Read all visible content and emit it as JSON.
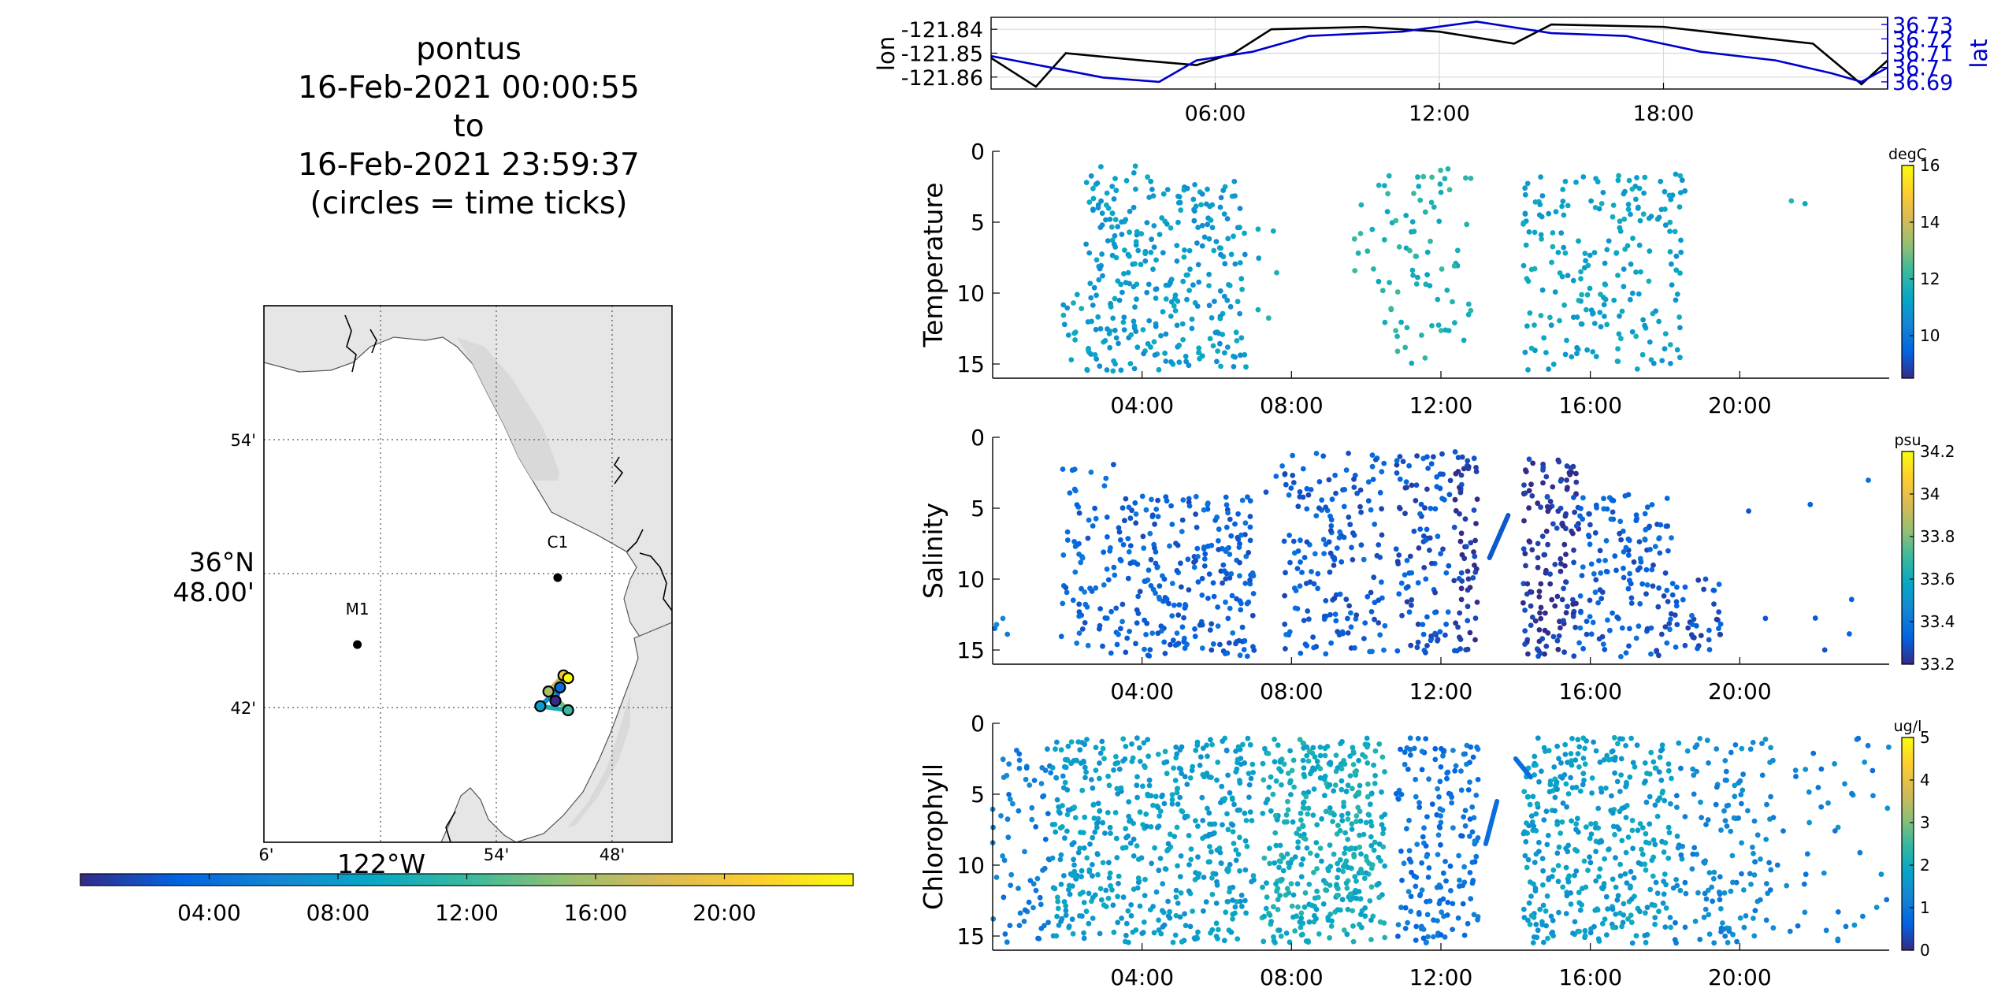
{
  "header": {
    "lines": [
      "pontus",
      "16-Feb-2021 00:00:55",
      "to",
      "16-Feb-2021 23:59:37",
      "(circles = time ticks)"
    ]
  },
  "colors": {
    "land": "#e6e6e6",
    "coast_shade": "#d9d9d9",
    "lat_color": "#0000cc",
    "lon_color": "#000000",
    "parula": [
      "#352a87",
      "#0363e1",
      "#1485d4",
      "#06a7c6",
      "#38b99e",
      "#92bf73",
      "#d9ba56",
      "#fcce2e",
      "#f9fb0e"
    ]
  },
  "chart_data": [
    {
      "id": "map",
      "type": "scatter",
      "lat_ticks": [
        "54'",
        "48.00'",
        "42'"
      ],
      "lat_center_label": "36°N",
      "lon_ticks": [
        "6'",
        "54'",
        "48'"
      ],
      "lon_center_label": "122°W",
      "stations": [
        {
          "name": "M1",
          "lon": -122.02,
          "lat": 36.747
        },
        {
          "name": "C1",
          "lon": -121.847,
          "lat": 36.797
        }
      ],
      "track_points": [
        {
          "lon": -121.849,
          "lat": 36.705
        },
        {
          "lon": -121.845,
          "lat": 36.715
        },
        {
          "lon": -121.862,
          "lat": 36.701
        },
        {
          "lon": -121.838,
          "lat": 36.698
        },
        {
          "lon": -121.855,
          "lat": 36.712
        },
        {
          "lon": -121.842,
          "lat": 36.724
        },
        {
          "lon": -121.838,
          "lat": 36.722
        }
      ],
      "colorbar": {
        "ticks": [
          "04:00",
          "08:00",
          "12:00",
          "16:00",
          "20:00"
        ]
      }
    },
    {
      "id": "position",
      "type": "line",
      "ylabel_left": "lon",
      "ylabel_right": "lat",
      "left_ticks": [
        "-121.84",
        "-121.85",
        "-121.86"
      ],
      "right_ticks": [
        "36.73",
        "36.72",
        "36.71",
        "36.7",
        "36.69"
      ],
      "x_ticks": [
        "06:00",
        "12:00",
        "18:00"
      ],
      "xlim_hours": [
        0,
        24
      ],
      "lon_ylim": [
        -121.865,
        -121.835
      ],
      "lat_ylim": [
        36.685,
        36.735
      ],
      "lon_series": {
        "x": [
          0,
          1.2,
          2,
          4,
          5.5,
          6.5,
          7.5,
          10,
          12,
          14,
          15,
          18,
          22,
          23.3,
          24
        ],
        "y": [
          -121.852,
          -121.864,
          -121.85,
          -121.853,
          -121.855,
          -121.85,
          -121.84,
          -121.839,
          -121.841,
          -121.846,
          -121.838,
          -121.839,
          -121.846,
          -121.863,
          -121.853
        ]
      },
      "lat_series": {
        "x": [
          0,
          3,
          4.5,
          5.5,
          7,
          8.5,
          11,
          13,
          15,
          17,
          19,
          21,
          22.5,
          23.3,
          24
        ],
        "y": [
          36.708,
          36.693,
          36.69,
          36.705,
          36.711,
          36.722,
          36.725,
          36.732,
          36.724,
          36.722,
          36.711,
          36.705,
          36.696,
          36.69,
          36.7
        ]
      }
    },
    {
      "id": "temperature",
      "type": "scatter",
      "ylabel": "Temperature",
      "unit": "degC",
      "y_ticks": [
        "0",
        "5",
        "10",
        "15"
      ],
      "ylim": [
        0,
        16
      ],
      "x_ticks": [
        "04:00",
        "08:00",
        "12:00",
        "16:00",
        "20:00"
      ],
      "xlim_hours": [
        0,
        24
      ],
      "clim": [
        8.5,
        16
      ],
      "cbar_ticks": [
        "16",
        "14",
        "12",
        "10"
      ],
      "clusters": [
        {
          "x": [
            1.7,
            2.4
          ],
          "y": [
            10,
            15.5
          ],
          "n": 12,
          "c": 11.2
        },
        {
          "x": [
            2.5,
            4.3
          ],
          "y": [
            1,
            15.5
          ],
          "n": 150,
          "c": 11.0
        },
        {
          "x": [
            4.3,
            6.8
          ],
          "y": [
            2,
            15.5
          ],
          "n": 170,
          "c": 11.0
        },
        {
          "x": [
            7.1,
            8.1
          ],
          "y": [
            0,
            14
          ],
          "n": 6,
          "c": 11.4
        },
        {
          "x": [
            9.5,
            10.5
          ],
          "y": [
            3,
            10
          ],
          "n": 8,
          "c": 11.8
        },
        {
          "x": [
            10.3,
            12.8
          ],
          "y": [
            1,
            15
          ],
          "n": 80,
          "c": 11.8
        },
        {
          "x": [
            14.2,
            18.6
          ],
          "y": [
            1.5,
            15.5
          ],
          "n": 220,
          "c": 11.2
        },
        {
          "x": [
            19,
            22.2
          ],
          "y": [
            3,
            5
          ],
          "n": 2,
          "c": 11.7
        }
      ]
    },
    {
      "id": "salinity",
      "type": "scatter",
      "ylabel": "Salinity",
      "unit": "psu",
      "y_ticks": [
        "0",
        "5",
        "10",
        "15"
      ],
      "ylim": [
        0,
        16
      ],
      "x_ticks": [
        "04:00",
        "08:00",
        "12:00",
        "16:00",
        "20:00"
      ],
      "xlim_hours": [
        0,
        24
      ],
      "clim": [
        33.2,
        34.2
      ],
      "cbar_ticks": [
        "34.2",
        "34",
        "33.8",
        "33.6",
        "33.4",
        "33.2"
      ],
      "clusters": [
        {
          "x": [
            0,
            0.4
          ],
          "y": [
            12,
            14
          ],
          "n": 4,
          "c": 33.4
        },
        {
          "x": [
            1.8,
            3.3
          ],
          "y": [
            1.5,
            15.5
          ],
          "n": 70,
          "c": 33.35
        },
        {
          "x": [
            3.3,
            7
          ],
          "y": [
            4,
            15.5
          ],
          "n": 250,
          "c": 33.33
        },
        {
          "x": [
            7.2,
            8
          ],
          "y": [
            2,
            4
          ],
          "n": 6,
          "c": 33.35
        },
        {
          "x": [
            7.8,
            10.5
          ],
          "y": [
            1,
            15.5
          ],
          "n": 170,
          "c": 33.32
        },
        {
          "x": [
            10.8,
            12.2
          ],
          "y": [
            1,
            15.5
          ],
          "n": 100,
          "c": 33.3
        },
        {
          "x": [
            12.2,
            13
          ],
          "y": [
            1,
            15.5
          ],
          "n": 70,
          "c": 33.24
        },
        {
          "x": [
            14.2,
            15.7
          ],
          "y": [
            1.5,
            15.5
          ],
          "n": 150,
          "c": 33.23
        },
        {
          "x": [
            15.7,
            18.2
          ],
          "y": [
            4,
            15.5
          ],
          "n": 150,
          "c": 33.32
        },
        {
          "x": [
            18.2,
            19.5
          ],
          "y": [
            10,
            15
          ],
          "n": 40,
          "c": 33.3
        },
        {
          "x": [
            19.8,
            23.5
          ],
          "y": [
            2,
            15
          ],
          "n": 8,
          "c": 33.35
        }
      ],
      "segments": [
        {
          "x": [
            13.3,
            13.8
          ],
          "y": [
            8.5,
            5.5
          ],
          "c": 33.3
        }
      ]
    },
    {
      "id": "chlorophyll",
      "type": "scatter",
      "ylabel": "Chlorophyll",
      "unit": "ug/l",
      "y_ticks": [
        "0",
        "5",
        "10",
        "15"
      ],
      "ylim": [
        0,
        16
      ],
      "x_ticks": [
        "04:00",
        "08:00",
        "12:00",
        "16:00",
        "20:00"
      ],
      "xlim_hours": [
        0,
        24
      ],
      "clim": [
        0,
        5
      ],
      "cbar_ticks": [
        "5",
        "4",
        "3",
        "2",
        "1",
        "0"
      ],
      "clusters": [
        {
          "x": [
            0,
            1.6
          ],
          "y": [
            1.5,
            15.5
          ],
          "n": 70,
          "c": 1.1
        },
        {
          "x": [
            1.6,
            7
          ],
          "y": [
            1,
            15.5
          ],
          "n": 500,
          "c": 1.7
        },
        {
          "x": [
            7.2,
            10.5
          ],
          "y": [
            1,
            15.5
          ],
          "n": 400,
          "c": 2.0
        },
        {
          "x": [
            10.8,
            13
          ],
          "y": [
            1,
            15.5
          ],
          "n": 180,
          "c": 0.9
        },
        {
          "x": [
            14.2,
            18.2
          ],
          "y": [
            1,
            15.5
          ],
          "n": 380,
          "c": 1.7
        },
        {
          "x": [
            18.2,
            21
          ],
          "y": [
            1,
            15.5
          ],
          "n": 150,
          "c": 1.3
        },
        {
          "x": [
            21,
            24
          ],
          "y": [
            1,
            15.5
          ],
          "n": 45,
          "c": 1.2
        }
      ],
      "segments": [
        {
          "x": [
            13.2,
            13.5
          ],
          "y": [
            8.5,
            5.5
          ],
          "c": 0.8
        },
        {
          "x": [
            14.0,
            14.4
          ],
          "y": [
            2.5,
            3.8
          ],
          "c": 0.8
        }
      ]
    }
  ]
}
